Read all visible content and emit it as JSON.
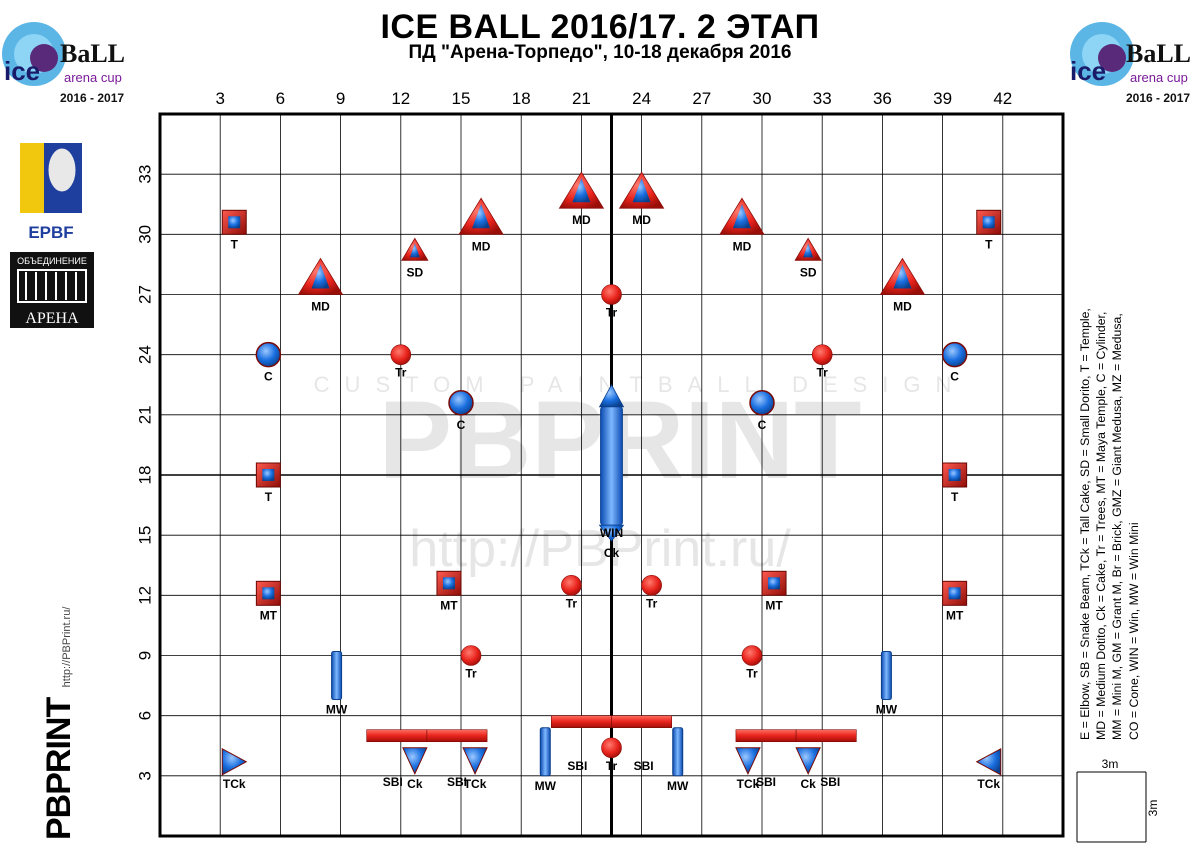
{
  "title": "ICE BALL 2016/17. 2 ЭТАП",
  "subtitle": "ПД \"Арена-Торпедо\", 10-18 декабря 2016",
  "logos": {
    "iceball_text_1": "BaLL",
    "iceball_text_2": "arena cup",
    "iceball_years": "2016 - 2017",
    "iceball_ice": "ice",
    "epbf": "EPBF",
    "arena_top": "ОБЪЕДИНЕНИЕ",
    "arena_bottom": "АРЕНА",
    "pbprint": "PBPRINT",
    "pbprint_url": "http://PBPrint.ru/"
  },
  "watermark": {
    "line1": "CUSTOM PAINTBALL DESIGN",
    "line2": "PBPRINT",
    "line3": "http://PBPrint.ru/"
  },
  "axes": {
    "x_ticks": [
      3,
      6,
      9,
      12,
      15,
      18,
      21,
      24,
      27,
      30,
      33,
      36,
      39,
      42
    ],
    "y_ticks": [
      3,
      6,
      9,
      12,
      15,
      18,
      21,
      24,
      27,
      30,
      33
    ],
    "x_range": [
      0,
      45
    ],
    "y_range": [
      0,
      36
    ],
    "center_x": 22.5,
    "center_y": 18
  },
  "legend": [
    "E = Elbow, SB = Snake Beam, TCk = Tall Cake, SD = Small Dorito, T = Temple,",
    "MD = Medium Dotito, Ck = Cake, Tr = Trees, MT = Maya Temple, C = Cylinder,",
    "MM = Mini M, GM = Grant M, Br = Brick, GMZ = Giant Medusa, MZ = Medusa,",
    "CO = Cone, WIN = Win, MW = Win Mini"
  ],
  "scale": {
    "horizontal": "3m",
    "vertical": "3m"
  },
  "colors": {
    "red": "#e8231c",
    "blue": "#1a6fe0",
    "grid": "#000000"
  },
  "bunkers": [
    {
      "type": "T",
      "label": "T",
      "x": 3.7,
      "y": 30.6
    },
    {
      "type": "T",
      "label": "T",
      "x": 41.3,
      "y": 30.6
    },
    {
      "type": "MD",
      "label": "MD",
      "x": 8.0,
      "y": 27.8
    },
    {
      "type": "MD",
      "label": "MD",
      "x": 37.0,
      "y": 27.8
    },
    {
      "type": "SD",
      "label": "SD",
      "x": 12.7,
      "y": 29.2
    },
    {
      "type": "SD",
      "label": "SD",
      "x": 32.3,
      "y": 29.2
    },
    {
      "type": "MD",
      "label": "MD",
      "x": 16.0,
      "y": 30.8
    },
    {
      "type": "MD",
      "label": "MD",
      "x": 29.0,
      "y": 30.8
    },
    {
      "type": "MD",
      "label": "MD",
      "x": 21.0,
      "y": 32.1
    },
    {
      "type": "MD",
      "label": "MD",
      "x": 24.0,
      "y": 32.1
    },
    {
      "type": "Tr",
      "label": "Tr",
      "x": 22.5,
      "y": 27.0
    },
    {
      "type": "C",
      "label": "C",
      "x": 5.4,
      "y": 24.0
    },
    {
      "type": "C",
      "label": "C",
      "x": 39.6,
      "y": 24.0
    },
    {
      "type": "Tr",
      "label": "Tr",
      "x": 12.0,
      "y": 24.0
    },
    {
      "type": "Tr",
      "label": "Tr",
      "x": 33.0,
      "y": 24.0
    },
    {
      "type": "C",
      "label": "C",
      "x": 15.0,
      "y": 21.6
    },
    {
      "type": "C",
      "label": "C",
      "x": 30.0,
      "y": 21.6
    },
    {
      "type": "T",
      "label": "T",
      "x": 5.4,
      "y": 18.0
    },
    {
      "type": "T",
      "label": "T",
      "x": 39.6,
      "y": 18.0
    },
    {
      "type": "MT",
      "label": "MT",
      "x": 5.4,
      "y": 12.1
    },
    {
      "type": "MT",
      "label": "MT",
      "x": 39.6,
      "y": 12.1
    },
    {
      "type": "MT",
      "label": "MT",
      "x": 14.4,
      "y": 12.6
    },
    {
      "type": "MT",
      "label": "MT",
      "x": 30.6,
      "y": 12.6
    },
    {
      "type": "Tr",
      "label": "Tr",
      "x": 20.5,
      "y": 12.5
    },
    {
      "type": "Tr",
      "label": "Tr",
      "x": 24.5,
      "y": 12.5
    },
    {
      "type": "Tr",
      "label": "Tr",
      "x": 15.5,
      "y": 9.0
    },
    {
      "type": "Tr",
      "label": "Tr",
      "x": 29.5,
      "y": 9.0
    },
    {
      "type": "MW",
      "label": "MW",
      "x": 8.8,
      "y": 8.0
    },
    {
      "type": "MW",
      "label": "MW",
      "x": 36.2,
      "y": 8.0
    },
    {
      "type": "TCk",
      "label": "TCk",
      "x": 3.7,
      "y": 3.7
    },
    {
      "type": "TCk",
      "label": "TCk",
      "x": 41.3,
      "y": 3.7
    },
    {
      "type": "Ck",
      "label": "Ck",
      "x": 12.7,
      "y": 3.7
    },
    {
      "type": "TCk",
      "label": "TCk",
      "x": 15.7,
      "y": 3.7
    },
    {
      "type": "TCk",
      "label": "TCk",
      "x": 29.3,
      "y": 3.7
    },
    {
      "type": "Ck",
      "label": "Ck",
      "x": 32.3,
      "y": 3.7
    },
    {
      "type": "MW",
      "label": "MW",
      "x": 19.2,
      "y": 4.2
    },
    {
      "type": "MW",
      "label": "MW",
      "x": 25.8,
      "y": 4.2
    },
    {
      "type": "Tr",
      "label": "Tr",
      "x": 22.5,
      "y": 4.4
    }
  ],
  "snake_beams": [
    {
      "label": "SBI",
      "x1": 10.3,
      "x2": 13.3,
      "y": 5.0,
      "lx": 11.6,
      "ly": 2.7
    },
    {
      "label": "SBI",
      "x1": 13.3,
      "x2": 16.3,
      "y": 5.0,
      "lx": 14.8,
      "ly": 2.7
    },
    {
      "label": "SBI",
      "x1": 28.7,
      "x2": 31.7,
      "y": 5.0,
      "lx": 30.2,
      "ly": 2.7
    },
    {
      "label": "SBI",
      "x1": 31.7,
      "x2": 34.7,
      "y": 5.0,
      "lx": 33.4,
      "ly": 2.7
    },
    {
      "label": "SBI",
      "x1": 19.5,
      "x2": 22.5,
      "y": 5.7,
      "lx": 20.8,
      "ly": 3.5
    },
    {
      "label": "SBI",
      "x1": 22.5,
      "x2": 25.5,
      "y": 5.7,
      "lx": 24.1,
      "ly": 3.5
    }
  ],
  "win": {
    "label": "WIN",
    "sub_label": "Ck",
    "x": 22.5,
    "y_bottom": 15.5,
    "y_top": 21.4
  }
}
